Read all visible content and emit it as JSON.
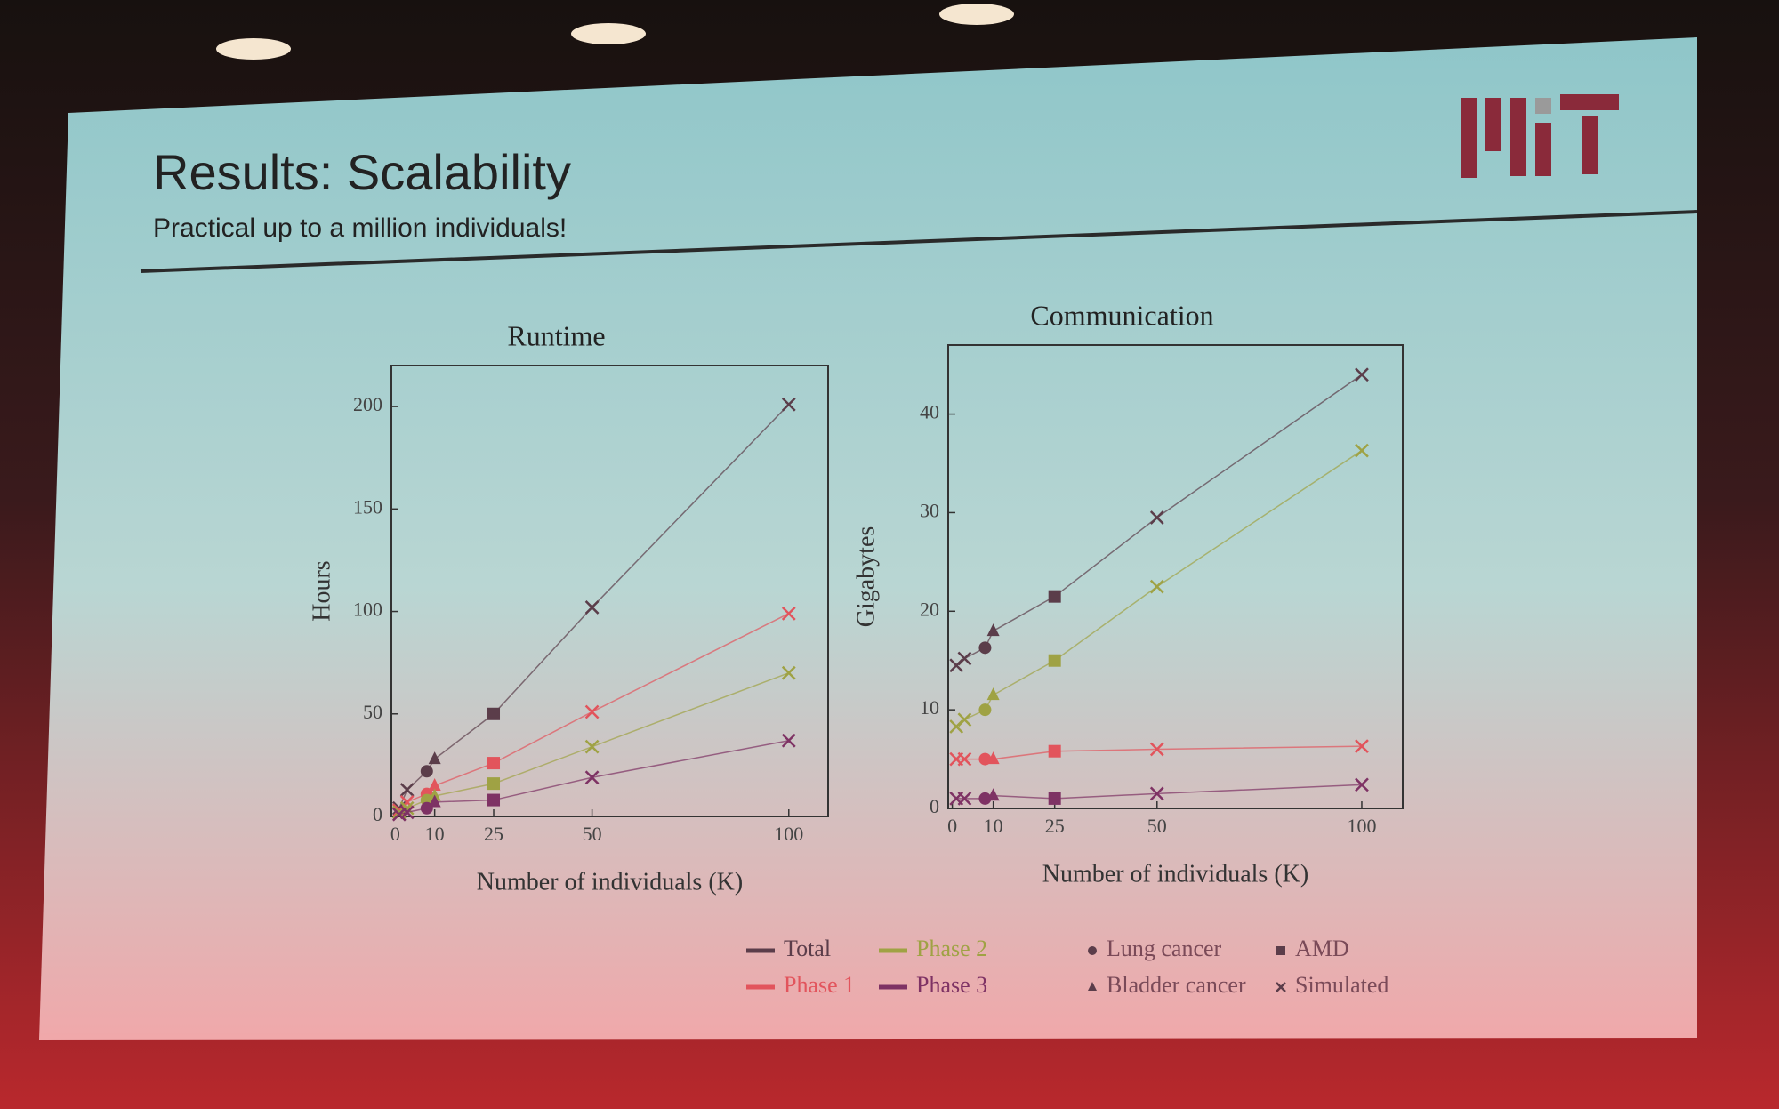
{
  "slide": {
    "title": "Results: Scalability",
    "subtitle": "Practical up to a million individuals!"
  },
  "legend": [
    {
      "name": "Total",
      "color": "#5b3d4a"
    },
    {
      "name": "Phase 1",
      "color": "#e2545c"
    },
    {
      "name": "Phase 2",
      "color": "#9fa244"
    },
    {
      "name": "Phase 3",
      "color": "#7e3264"
    }
  ],
  "marker_legend": [
    {
      "label": "Lung cancer",
      "shape": "circle"
    },
    {
      "label": "Bladder cancer",
      "shape": "triangle"
    },
    {
      "label": "AMD",
      "shape": "square"
    },
    {
      "label": "Simulated",
      "shape": "x"
    }
  ],
  "chart_data": [
    {
      "type": "scatter",
      "title": "Runtime",
      "x_label": "Number of individuals (K)",
      "y_label": "Hours",
      "x": [
        1,
        3,
        8,
        10,
        25,
        50,
        100
      ],
      "markers": [
        "x",
        "x",
        "circle",
        "triangle",
        "square",
        "x",
        "x"
      ],
      "xlim": [
        -1,
        110
      ],
      "ylim": [
        0,
        220
      ],
      "xticks": [
        0,
        10,
        25,
        50,
        100
      ],
      "yticks": [
        0,
        50,
        100,
        150,
        200
      ],
      "series": [
        {
          "values": [
            4,
            13,
            22,
            28,
            50,
            102,
            201
          ]
        },
        {
          "values": [
            3,
            7,
            11,
            15,
            26,
            51,
            99
          ]
        },
        {
          "values": [
            2,
            4,
            8,
            10,
            16,
            34,
            70
          ]
        },
        {
          "values": [
            1,
            2,
            4,
            7,
            8,
            19,
            37
          ]
        }
      ]
    },
    {
      "type": "scatter",
      "title": "Communication",
      "x_label": "Number of individuals (K)",
      "y_label": "Gigabytes",
      "x": [
        1,
        3,
        8,
        10,
        25,
        50,
        100
      ],
      "markers": [
        "x",
        "x",
        "circle",
        "triangle",
        "square",
        "x",
        "x"
      ],
      "xlim": [
        -1,
        110
      ],
      "ylim": [
        0,
        47
      ],
      "xticks": [
        0,
        10,
        25,
        50,
        100
      ],
      "yticks": [
        0,
        10,
        20,
        30,
        40
      ],
      "series": [
        {
          "values": [
            14.5,
            15.2,
            16.3,
            18,
            21.5,
            29.5,
            44
          ]
        },
        {
          "values": [
            5,
            5,
            5,
            5,
            5.8,
            6,
            6.3
          ]
        },
        {
          "values": [
            8.3,
            9,
            10,
            11.5,
            15,
            22.5,
            36.3
          ]
        },
        {
          "values": [
            1,
            1,
            1,
            1.3,
            1,
            1.5,
            2.4
          ]
        }
      ]
    }
  ]
}
